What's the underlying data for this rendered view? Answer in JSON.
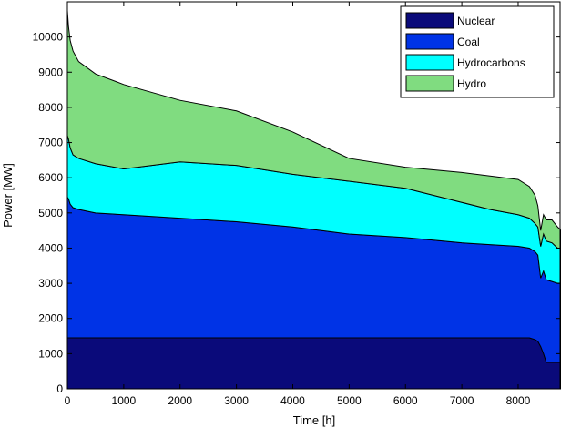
{
  "chart_data": {
    "type": "area",
    "stacked": true,
    "title": "",
    "xlabel": "Time [h]",
    "ylabel": "Power [MW]",
    "xlim": [
      0,
      8760
    ],
    "ylim": [
      0,
      11000
    ],
    "xticks": [
      0,
      1000,
      2000,
      3000,
      4000,
      5000,
      6000,
      7000,
      8000
    ],
    "yticks": [
      0,
      1000,
      2000,
      3000,
      4000,
      5000,
      6000,
      7000,
      8000,
      9000,
      10000
    ],
    "grid": false,
    "legend_position": "top-right",
    "x": [
      0,
      20,
      50,
      100,
      200,
      500,
      1000,
      2000,
      3000,
      4000,
      5000,
      6000,
      7000,
      7500,
      8000,
      8200,
      8300,
      8350,
      8400,
      8450,
      8500,
      8600,
      8700,
      8760
    ],
    "series": [
      {
        "name": "Nuclear",
        "color": "#0a0a7a",
        "values": [
          1450,
          1450,
          1450,
          1450,
          1450,
          1450,
          1450,
          1450,
          1450,
          1450,
          1450,
          1450,
          1450,
          1450,
          1450,
          1450,
          1400,
          1350,
          1200,
          1000,
          750,
          750,
          750,
          750
        ]
      },
      {
        "name": "Coal",
        "color": "#0033e6",
        "values": [
          4000,
          3950,
          3800,
          3700,
          3650,
          3550,
          3500,
          3400,
          3300,
          3150,
          2950,
          2850,
          2700,
          2650,
          2600,
          2550,
          2500,
          2450,
          1950,
          2350,
          2350,
          2300,
          2250,
          2250
        ]
      },
      {
        "name": "Hydrocarbons",
        "color": "#00ffff",
        "values": [
          1750,
          1700,
          1600,
          1500,
          1450,
          1400,
          1300,
          1600,
          1600,
          1500,
          1500,
          1400,
          1150,
          1000,
          900,
          850,
          800,
          800,
          900,
          1050,
          1100,
          1100,
          1000,
          1000
        ]
      },
      {
        "name": "Hydro",
        "color": "#80dc80",
        "values": [
          3550,
          3200,
          3050,
          2950,
          2750,
          2550,
          2400,
          1750,
          1550,
          1200,
          650,
          600,
          850,
          950,
          1000,
          900,
          800,
          600,
          450,
          550,
          600,
          650,
          600,
          500
        ]
      }
    ]
  }
}
